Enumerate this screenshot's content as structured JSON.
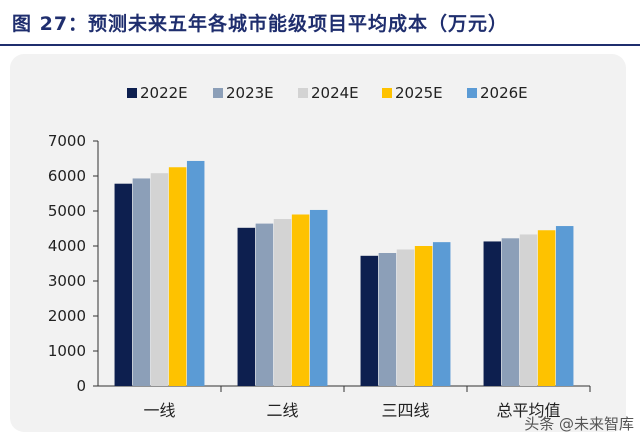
{
  "header": {
    "title": "图 27：预测未来五年各城市能级项目平均成本（万元）"
  },
  "watermark": "头条 @未来智库",
  "chart_data": {
    "type": "bar",
    "title": "图 27：预测未来五年各城市能级项目平均成本（万元）",
    "xlabel": "",
    "ylabel": "",
    "categories": [
      "一线",
      "二线",
      "三四线",
      "总平均值"
    ],
    "ylim": [
      0,
      7000
    ],
    "yticks": [
      0,
      1000,
      2000,
      3000,
      4000,
      5000,
      6000,
      7000
    ],
    "grid": false,
    "legend": "top",
    "series": [
      {
        "name": "2022E",
        "color": "#0d1f4f",
        "values": [
          5780,
          4520,
          3720,
          4130
        ]
      },
      {
        "name": "2023E",
        "color": "#8c9fb8",
        "values": [
          5930,
          4640,
          3800,
          4220
        ]
      },
      {
        "name": "2024E",
        "color": "#d3d3d3",
        "values": [
          6080,
          4770,
          3900,
          4330
        ]
      },
      {
        "name": "2025E",
        "color": "#fec200",
        "values": [
          6250,
          4900,
          4000,
          4450
        ]
      },
      {
        "name": "2026E",
        "color": "#5b9bd5",
        "values": [
          6430,
          5030,
          4110,
          4570
        ]
      }
    ]
  }
}
